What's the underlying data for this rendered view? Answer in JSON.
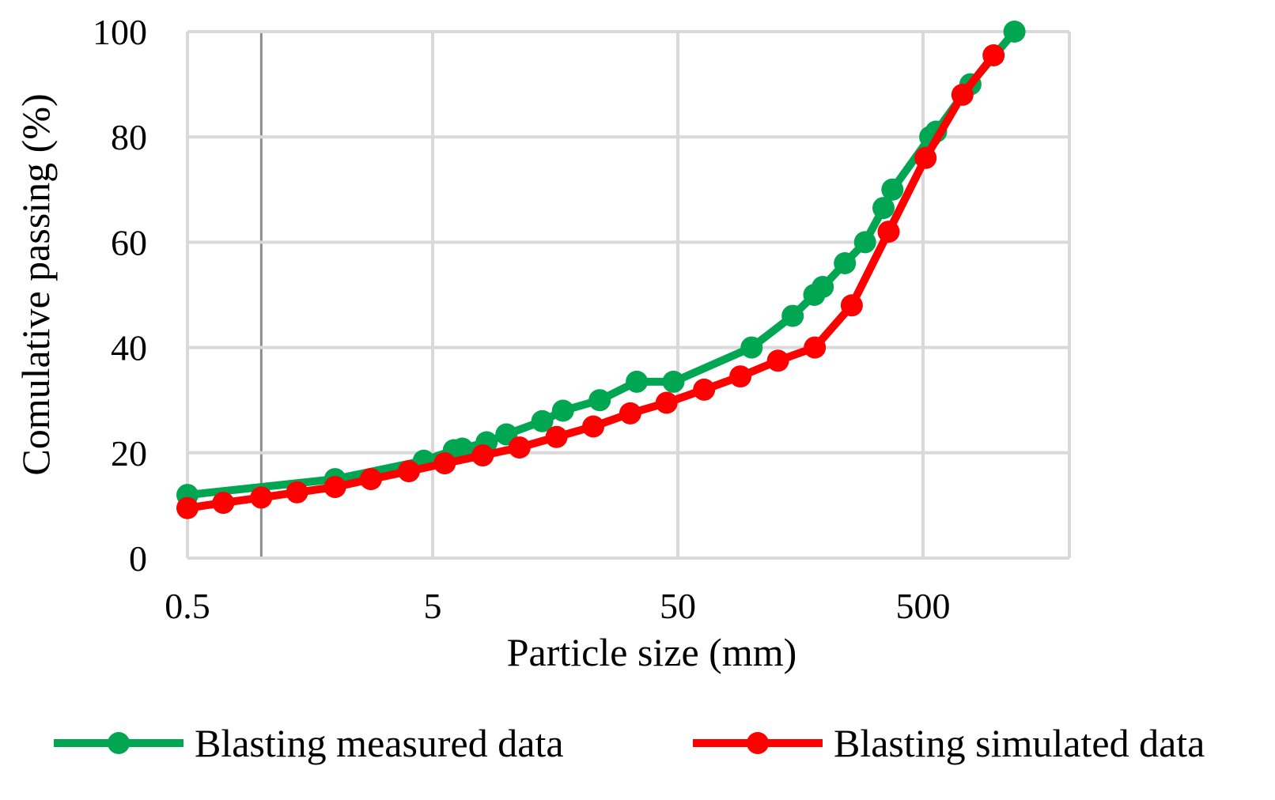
{
  "chart_data": {
    "type": "line",
    "x_scale": "log",
    "title": "",
    "xlabel": "Particle size (mm)",
    "ylabel": "Comulative passing (%)",
    "xlim": [
      0.5,
      1500
    ],
    "ylim": [
      0,
      100
    ],
    "x_ticks": [
      0.5,
      5,
      50,
      500
    ],
    "x_tick_labels": [
      "0.5",
      "5",
      "50",
      "500"
    ],
    "y_ticks": [
      0,
      20,
      40,
      60,
      80,
      100
    ],
    "y_tick_labels": [
      "0",
      "20",
      "40",
      "60",
      "80",
      "100"
    ],
    "legend_position": "bottom",
    "series": [
      {
        "name": "Blasting measured data",
        "color": "#00a651",
        "x": [
          0.5,
          2.0,
          4.6,
          6.1,
          6.6,
          8.3,
          10.0,
          14.0,
          17.0,
          24.0,
          34.0,
          48.0,
          100.0,
          147.0,
          180.0,
          195.0,
          240.0,
          290.0,
          345.0,
          375.0,
          535.0,
          565.0,
          780.0,
          1180.0
        ],
        "values": [
          12,
          15,
          18.5,
          20.5,
          20.8,
          22,
          23.5,
          26,
          28,
          30,
          33.5,
          33.5,
          40,
          46,
          50,
          51.5,
          56,
          60,
          66.5,
          70,
          80,
          81,
          90,
          100
        ]
      },
      {
        "name": "Blasting simulated data",
        "color": "#ff0000",
        "x": [
          0.5,
          0.7,
          1.0,
          1.4,
          2.0,
          2.8,
          4.0,
          5.6,
          8.0,
          11.3,
          16.0,
          22.6,
          32.0,
          45.0,
          64.0,
          90.0,
          128.0,
          181.0,
          256.0,
          362.0,
          512.0,
          724.0,
          970.0
        ],
        "values": [
          9.5,
          10.5,
          11.5,
          12.5,
          13.5,
          15,
          16.5,
          18,
          19.5,
          21,
          23,
          25,
          27.5,
          29.5,
          32,
          34.5,
          37.5,
          40,
          48,
          62,
          76,
          88,
          95.5
        ]
      }
    ]
  }
}
